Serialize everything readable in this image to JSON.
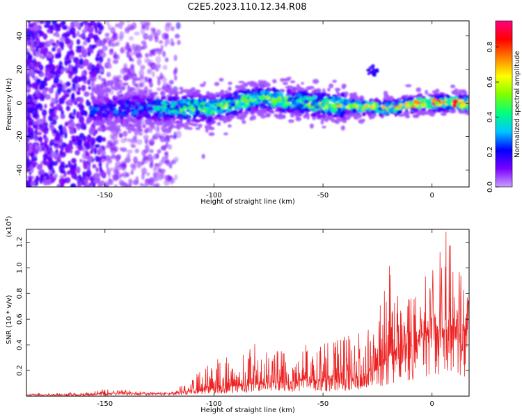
{
  "title": "C2E5.2023.110.12.34.R08",
  "chart_data": [
    {
      "type": "heatmap",
      "title": "C2E5.2023.110.12.34.R08",
      "xlabel": "Height of straight line (km)",
      "ylabel": "Frequency (Hz)",
      "xlim": [
        -186,
        17
      ],
      "ylim": [
        -50,
        49
      ],
      "xticks": [
        -150,
        -100,
        -50,
        0
      ],
      "yticks": [
        -40,
        -20,
        0,
        20,
        40
      ],
      "colorbar": {
        "label": "Normalized spectral amplitude",
        "range": [
          0.0,
          0.95
        ],
        "ticks": [
          "0.0",
          "0.2",
          "0.4",
          "0.6",
          "0.8"
        ],
        "colormap": [
          "#c8a0ff",
          "#7a00ff",
          "#0000ff",
          "#00c8ff",
          "#00ff80",
          "#80ff00",
          "#ffff00",
          "#ff8000",
          "#ff0000",
          "#ff0080"
        ]
      },
      "ridge": {
        "description_free": true,
        "x": [
          -150,
          -130,
          -115,
          -100,
          -80,
          -65,
          -50,
          -35,
          -20,
          -10,
          0,
          15
        ],
        "freq_center": [
          -4,
          -3,
          -3,
          -3,
          3,
          1,
          -1,
          -2,
          -3,
          -1,
          0,
          0
        ],
        "peak_amplitude": [
          0.25,
          0.3,
          0.45,
          0.5,
          0.55,
          0.5,
          0.55,
          0.6,
          0.65,
          0.8,
          0.9,
          0.9
        ]
      }
    },
    {
      "type": "line",
      "xlabel": "Height of straight line (km)",
      "ylabel": "SNR (10 * v/v)",
      "y_multiplier": "(x10^4)",
      "xlim": [
        -186,
        17
      ],
      "ylim": [
        0,
        1.3
      ],
      "xticks": [
        -150,
        -100,
        -50,
        0
      ],
      "yticks": [
        "0.2",
        "0.4",
        "0.6",
        "0.8",
        "1.0",
        "1.2"
      ],
      "line_color": "#ee2222",
      "envelope": {
        "x": [
          -186,
          -160,
          -150,
          -140,
          -130,
          -120,
          -115,
          -110,
          -100,
          -90,
          -80,
          -70,
          -60,
          -50,
          -40,
          -30,
          -25,
          -20,
          -15,
          -10,
          -5,
          0,
          5,
          10,
          15,
          17
        ],
        "base": [
          0.01,
          0.01,
          0.02,
          0.02,
          0.02,
          0.02,
          0.03,
          0.04,
          0.06,
          0.08,
          0.1,
          0.1,
          0.12,
          0.12,
          0.13,
          0.15,
          0.2,
          0.3,
          0.35,
          0.35,
          0.45,
          0.55,
          0.5,
          0.55,
          0.5,
          0.7
        ],
        "peak": [
          0.02,
          0.03,
          0.05,
          0.05,
          0.03,
          0.03,
          0.08,
          0.15,
          0.3,
          0.35,
          0.4,
          0.35,
          0.4,
          0.45,
          0.45,
          0.5,
          0.55,
          1.1,
          0.75,
          0.85,
          0.9,
          0.95,
          1.28,
          1.25,
          1.0,
          0.75
        ]
      }
    }
  ]
}
